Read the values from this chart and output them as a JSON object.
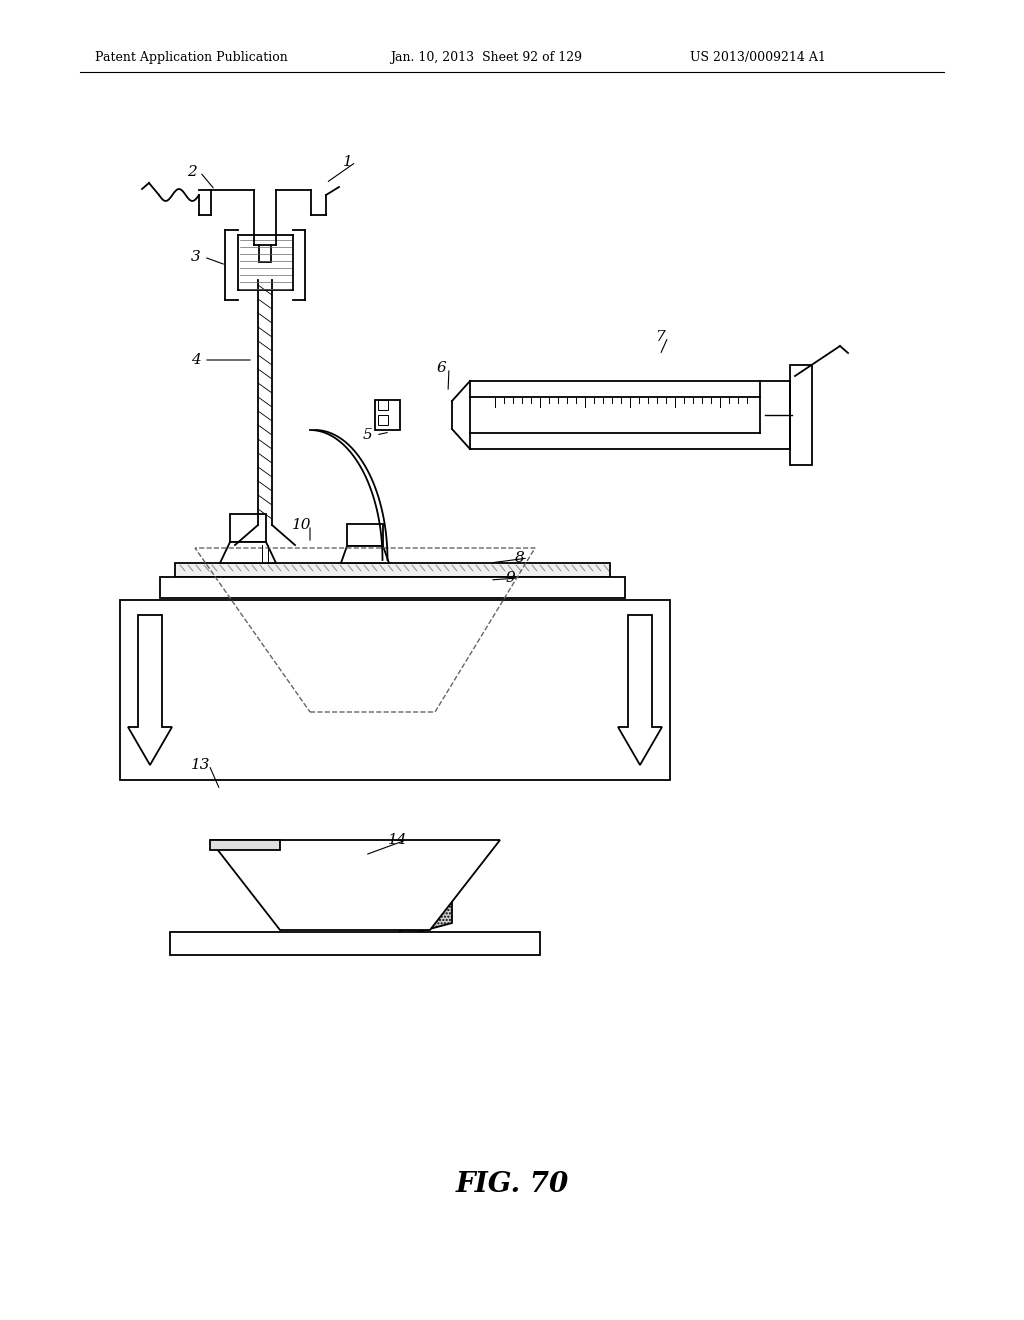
{
  "bg_color": "#ffffff",
  "header_left": "Patent Application Publication",
  "header_mid": "Jan. 10, 2013  Sheet 92 of 129",
  "header_right": "US 2013/0009214 A1",
  "figure_label": "FIG. 70",
  "black": "#000000",
  "darkgray": "#666666",
  "lightgray": "#cccccc"
}
